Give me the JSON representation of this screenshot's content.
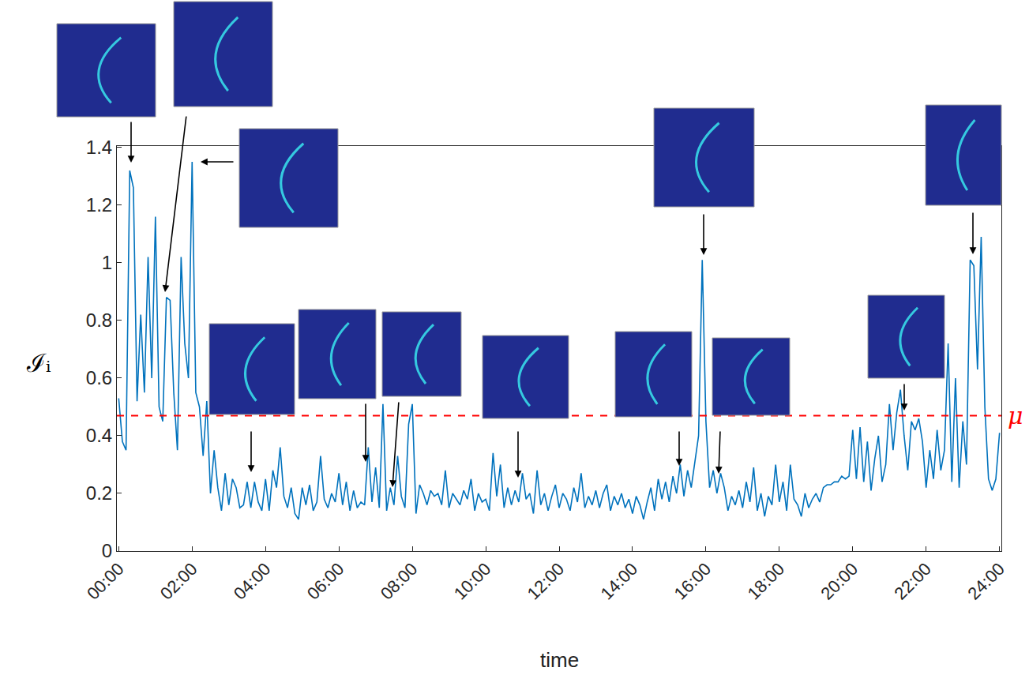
{
  "chart_data": {
    "type": "line",
    "x_label": "time",
    "y_label": "ℐᵢ",
    "color": "#0072bd",
    "grid": false,
    "xlim": [
      -0.05,
      24.05
    ],
    "ylim": [
      0,
      1.405
    ],
    "xticks": [
      {
        "value": 0,
        "label": "00:00"
      },
      {
        "value": 2,
        "label": "02:00"
      },
      {
        "value": 4,
        "label": "04:00"
      },
      {
        "value": 6,
        "label": "06:00"
      },
      {
        "value": 8,
        "label": "08:00"
      },
      {
        "value": 10,
        "label": "10:00"
      },
      {
        "value": 12,
        "label": "12:00"
      },
      {
        "value": 14,
        "label": "14:00"
      },
      {
        "value": 16,
        "label": "16:00"
      },
      {
        "value": 18,
        "label": "18:00"
      },
      {
        "value": 20,
        "label": "20:00"
      },
      {
        "value": 22,
        "label": "22:00"
      },
      {
        "value": 24,
        "label": "24:00"
      }
    ],
    "yticks": [
      0,
      0.2,
      0.4,
      0.6,
      0.8,
      1,
      1.2,
      1.4
    ],
    "threshold": {
      "value": 0.47,
      "label": "μ",
      "color": "#ff0000",
      "line_style": "dashed"
    },
    "x": [
      0.0,
      0.1,
      0.2,
      0.3,
      0.4,
      0.5,
      0.6,
      0.7,
      0.8,
      0.9,
      1.0,
      1.1,
      1.2,
      1.3,
      1.4,
      1.5,
      1.6,
      1.7,
      1.8,
      1.9,
      2.0,
      2.1,
      2.2,
      2.3,
      2.4,
      2.5,
      2.6,
      2.7,
      2.8,
      2.9,
      3.0,
      3.1,
      3.2,
      3.3,
      3.4,
      3.5,
      3.6,
      3.7,
      3.8,
      3.9,
      4.0,
      4.1,
      4.2,
      4.3,
      4.4,
      4.5,
      4.6,
      4.7,
      4.8,
      4.9,
      5.0,
      5.1,
      5.2,
      5.3,
      5.4,
      5.5,
      5.6,
      5.7,
      5.8,
      5.9,
      6.0,
      6.1,
      6.2,
      6.3,
      6.4,
      6.5,
      6.6,
      6.7,
      6.8,
      6.9,
      7.0,
      7.1,
      7.2,
      7.3,
      7.4,
      7.5,
      7.6,
      7.7,
      7.8,
      7.9,
      8.0,
      8.1,
      8.2,
      8.3,
      8.4,
      8.5,
      8.6,
      8.7,
      8.8,
      8.9,
      9.0,
      9.1,
      9.2,
      9.3,
      9.4,
      9.5,
      9.6,
      9.7,
      9.8,
      9.9,
      10.0,
      10.1,
      10.2,
      10.3,
      10.4,
      10.5,
      10.6,
      10.7,
      10.8,
      10.9,
      11.0,
      11.1,
      11.2,
      11.3,
      11.4,
      11.5,
      11.6,
      11.7,
      11.8,
      11.9,
      12.0,
      12.1,
      12.2,
      12.3,
      12.4,
      12.5,
      12.6,
      12.7,
      12.8,
      12.9,
      13.0,
      13.1,
      13.2,
      13.3,
      13.4,
      13.5,
      13.6,
      13.7,
      13.8,
      13.9,
      14.0,
      14.1,
      14.2,
      14.3,
      14.4,
      14.5,
      14.6,
      14.7,
      14.8,
      14.9,
      15.0,
      15.1,
      15.2,
      15.3,
      15.4,
      15.5,
      15.6,
      15.7,
      15.8,
      15.9,
      16.0,
      16.1,
      16.2,
      16.3,
      16.4,
      16.5,
      16.6,
      16.7,
      16.8,
      16.9,
      17.0,
      17.1,
      17.2,
      17.3,
      17.4,
      17.5,
      17.6,
      17.7,
      17.8,
      17.9,
      18.0,
      18.1,
      18.2,
      18.3,
      18.4,
      18.5,
      18.6,
      18.7,
      18.8,
      18.9,
      19.0,
      19.1,
      19.2,
      19.3,
      19.4,
      19.5,
      19.6,
      19.7,
      19.8,
      19.9,
      20.0,
      20.1,
      20.2,
      20.3,
      20.4,
      20.5,
      20.6,
      20.7,
      20.8,
      20.9,
      21.0,
      21.1,
      21.2,
      21.3,
      21.4,
      21.5,
      21.6,
      21.7,
      21.8,
      21.9,
      22.0,
      22.1,
      22.2,
      22.3,
      22.4,
      22.5,
      22.6,
      22.7,
      22.8,
      22.9,
      23.0,
      23.1,
      23.2,
      23.3,
      23.4,
      23.5,
      23.6,
      23.7,
      23.8,
      23.9,
      24.0
    ],
    "values": [
      0.53,
      0.38,
      0.35,
      1.32,
      1.26,
      0.52,
      0.82,
      0.55,
      1.02,
      0.6,
      1.16,
      0.5,
      0.45,
      0.88,
      0.87,
      0.55,
      0.35,
      1.02,
      0.72,
      0.6,
      1.35,
      0.55,
      0.5,
      0.33,
      0.52,
      0.2,
      0.35,
      0.22,
      0.14,
      0.27,
      0.16,
      0.25,
      0.22,
      0.15,
      0.16,
      0.24,
      0.15,
      0.24,
      0.17,
      0.14,
      0.25,
      0.14,
      0.28,
      0.22,
      0.36,
      0.19,
      0.15,
      0.22,
      0.13,
      0.11,
      0.22,
      0.16,
      0.23,
      0.14,
      0.17,
      0.33,
      0.18,
      0.15,
      0.2,
      0.17,
      0.27,
      0.16,
      0.24,
      0.14,
      0.21,
      0.15,
      0.17,
      0.16,
      0.36,
      0.17,
      0.29,
      0.15,
      0.51,
      0.14,
      0.22,
      0.16,
      0.33,
      0.19,
      0.15,
      0.44,
      0.51,
      0.13,
      0.23,
      0.2,
      0.16,
      0.21,
      0.19,
      0.2,
      0.16,
      0.28,
      0.15,
      0.2,
      0.18,
      0.16,
      0.21,
      0.18,
      0.25,
      0.14,
      0.2,
      0.17,
      0.18,
      0.14,
      0.34,
      0.19,
      0.3,
      0.15,
      0.22,
      0.16,
      0.21,
      0.17,
      0.27,
      0.18,
      0.2,
      0.13,
      0.28,
      0.16,
      0.2,
      0.14,
      0.19,
      0.23,
      0.15,
      0.2,
      0.18,
      0.14,
      0.22,
      0.17,
      0.27,
      0.15,
      0.19,
      0.16,
      0.21,
      0.15,
      0.2,
      0.23,
      0.14,
      0.19,
      0.16,
      0.2,
      0.15,
      0.18,
      0.13,
      0.19,
      0.16,
      0.11,
      0.17,
      0.22,
      0.14,
      0.25,
      0.18,
      0.24,
      0.17,
      0.26,
      0.2,
      0.3,
      0.19,
      0.28,
      0.22,
      0.31,
      0.4,
      1.01,
      0.45,
      0.22,
      0.28,
      0.2,
      0.27,
      0.22,
      0.14,
      0.19,
      0.16,
      0.21,
      0.15,
      0.24,
      0.17,
      0.29,
      0.14,
      0.2,
      0.12,
      0.19,
      0.16,
      0.3,
      0.17,
      0.24,
      0.14,
      0.3,
      0.18,
      0.16,
      0.12,
      0.2,
      0.15,
      0.18,
      0.2,
      0.17,
      0.22,
      0.23,
      0.23,
      0.24,
      0.24,
      0.26,
      0.25,
      0.26,
      0.42,
      0.25,
      0.43,
      0.24,
      0.38,
      0.21,
      0.32,
      0.4,
      0.24,
      0.3,
      0.51,
      0.35,
      0.48,
      0.56,
      0.4,
      0.28,
      0.45,
      0.42,
      0.46,
      0.38,
      0.22,
      0.35,
      0.25,
      0.42,
      0.28,
      0.35,
      0.72,
      0.24,
      0.6,
      0.22,
      0.45,
      0.3,
      1.01,
      0.99,
      0.63,
      1.09,
      0.5,
      0.25,
      0.21,
      0.25,
      0.41
    ]
  }
}
